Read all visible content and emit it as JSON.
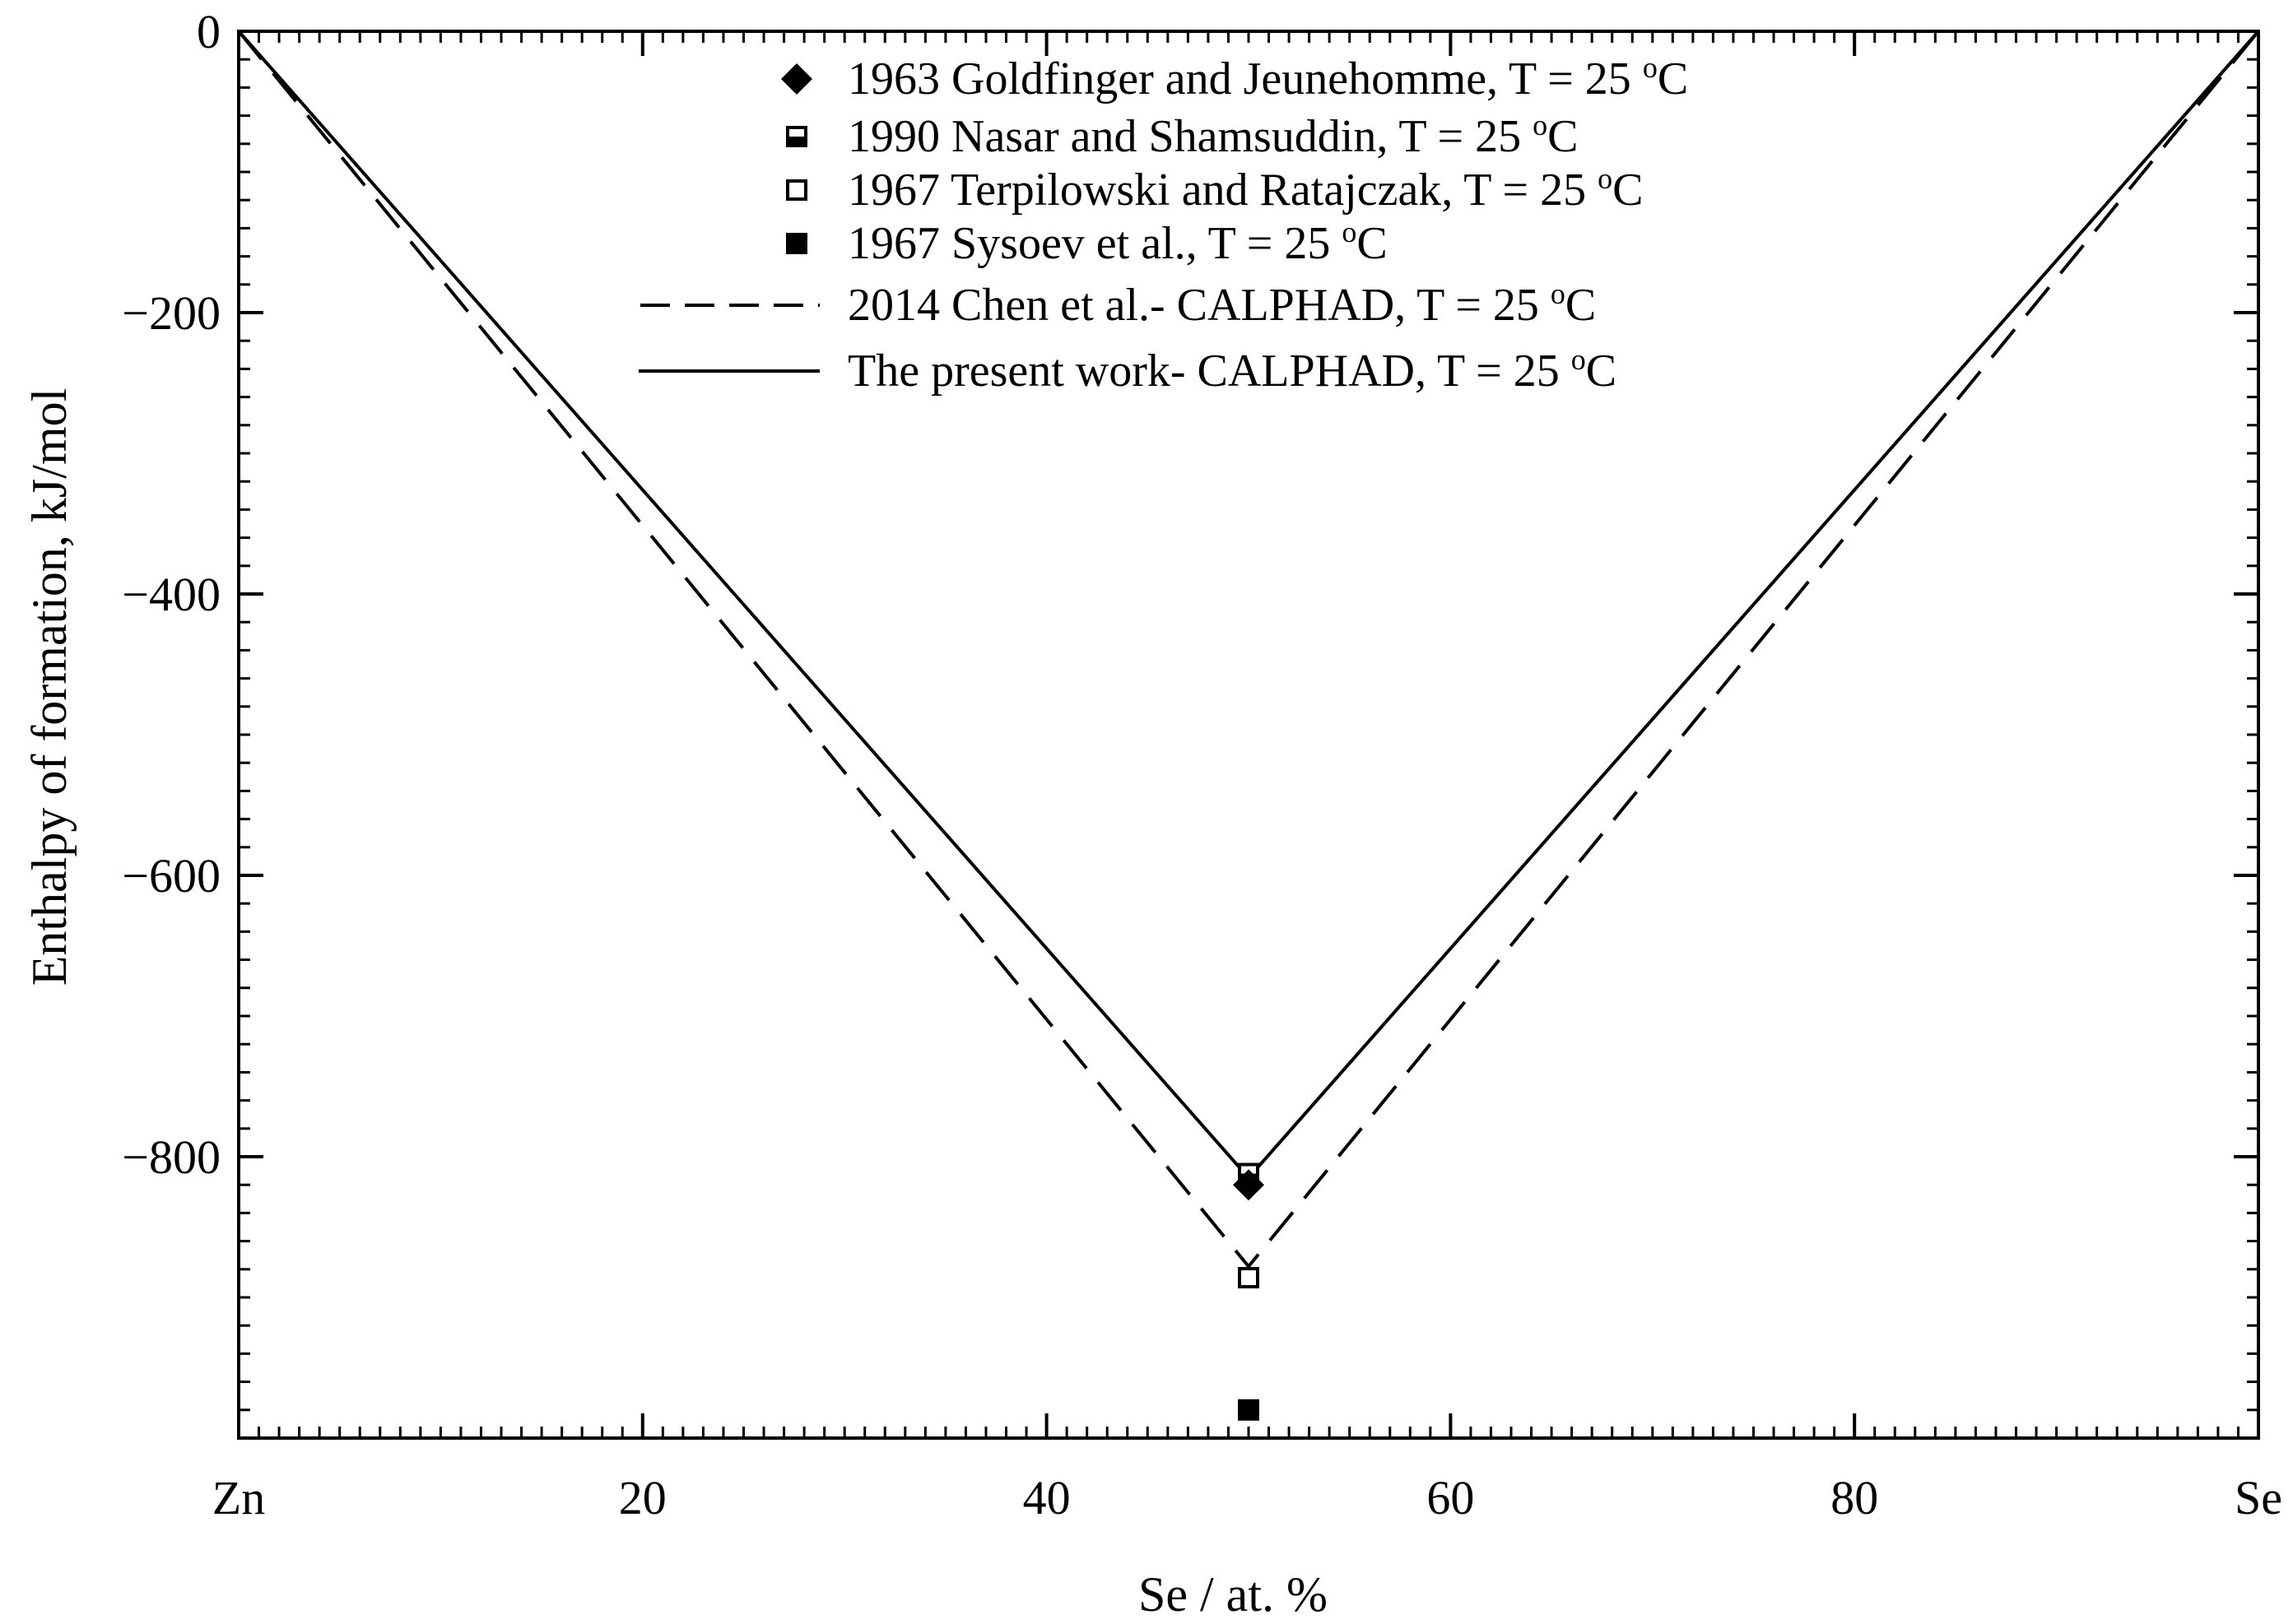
{
  "chart_data": {
    "type": "line",
    "title": "",
    "xlabel": "Se / at. %",
    "ylabel": "Enthalpy of formation, kJ/mol",
    "xlim": [
      0,
      100
    ],
    "ylim": [
      -1000,
      0
    ],
    "x_ticks": [
      {
        "value": 0,
        "label": "Zn"
      },
      {
        "value": 20,
        "label": "20"
      },
      {
        "value": 40,
        "label": "40"
      },
      {
        "value": 60,
        "label": "60"
      },
      {
        "value": 80,
        "label": "80"
      },
      {
        "value": 100,
        "label": "Se"
      }
    ],
    "y_ticks": [
      {
        "value": 0,
        "label": "0"
      },
      {
        "value": -200,
        "label": "−200"
      },
      {
        "value": -400,
        "label": "−400"
      },
      {
        "value": -600,
        "label": "−600"
      },
      {
        "value": -800,
        "label": "−800"
      }
    ],
    "grid": false,
    "legend_position": "top-center",
    "series": [
      {
        "name": "1963 Goldfinger and Jeunehomme, T = 25 oC",
        "text": "1963 Goldfinger and Jeunehomme, T = 25 ",
        "kind": "scatter",
        "marker": "diamond-filled",
        "x": [
          50
        ],
        "y": [
          -820
        ]
      },
      {
        "name": "1990 Nasar and Shamsuddin, T = 25 oC",
        "text": "1990 Nasar and Shamsuddin, T = 25 ",
        "kind": "scatter",
        "marker": "square-half",
        "x": [
          50
        ],
        "y": [
          -812
        ]
      },
      {
        "name": "1967 Terpilowski and Ratajczak, T = 25 oC",
        "text": "1967 Terpilowski and Ratajczak, T = 25 ",
        "kind": "scatter",
        "marker": "square-open",
        "x": [
          50
        ],
        "y": [
          -886
        ]
      },
      {
        "name": "1967 Sysoev et al., T = 25 oC",
        "text": "1967 Sysoev et al., T = 25 ",
        "kind": "scatter",
        "marker": "square-filled",
        "x": [
          50
        ],
        "y": [
          -980
        ]
      },
      {
        "name": "2014 Chen et al.- CALPHAD, T = 25 oC",
        "text": "2014 Chen et al.- CALPHAD, T = 25 ",
        "kind": "line",
        "style": "dashed",
        "x": [
          0,
          50,
          100
        ],
        "y": [
          0,
          -878,
          0
        ]
      },
      {
        "name": "The present work- CALPHAD, T = 25 oC",
        "text": "The present work- CALPHAD, T = 25 ",
        "kind": "line",
        "style": "solid",
        "x": [
          0,
          50,
          100
        ],
        "y": [
          0,
          -815,
          0
        ]
      }
    ],
    "legend_sup": "o",
    "legend_unit": "C"
  },
  "colors": {
    "ink": "#000000",
    "background": "#ffffff"
  }
}
